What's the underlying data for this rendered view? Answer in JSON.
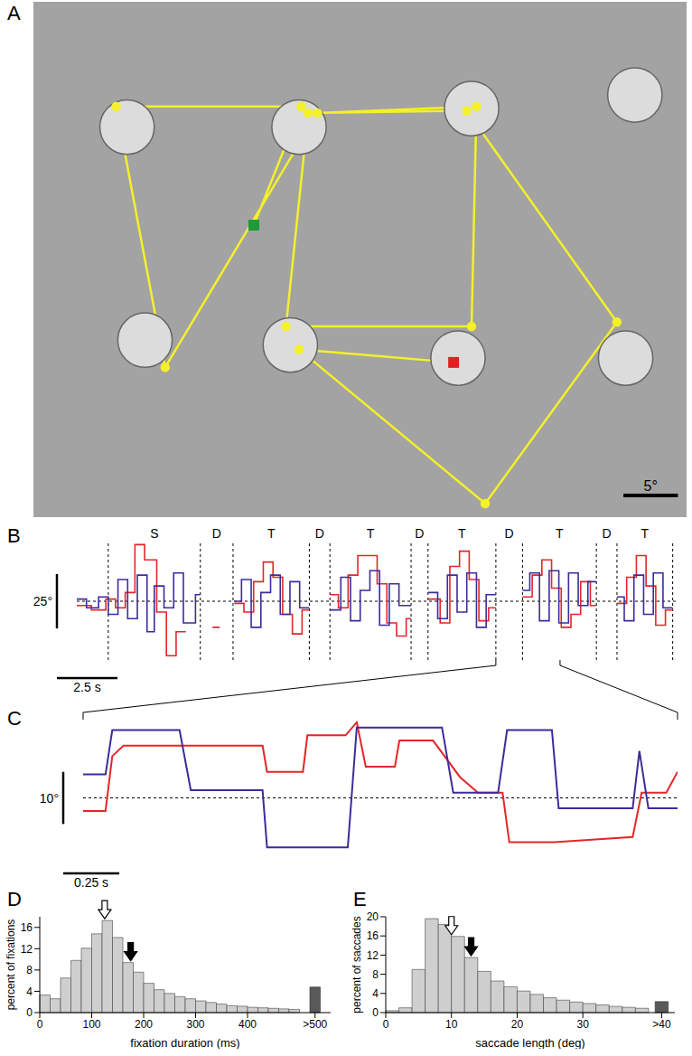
{
  "chart_data": [
    {
      "type": "line",
      "panel_label": "A",
      "xlim": [
        0,
        60
      ],
      "ylim": [
        0,
        47.3
      ],
      "tick_labels": false,
      "patches": {
        "x": [
          8.6,
          24.4,
          40.25,
          55.25,
          10.25,
          23.6,
          39,
          54.4
        ],
        "y": [
          35.8,
          35.8,
          37.5,
          38.75,
          16.25,
          15.8,
          14.6,
          14.6
        ],
        "r": [
          2.5,
          2.5,
          2.5,
          2.5,
          2.5,
          2.5,
          2.5,
          2.5
        ]
      },
      "series": [
        {
          "type": "line",
          "color": "#f4f02a",
          "marker": "circle",
          "x": [
            20.25,
            24.6,
            7.6,
            12.1,
            26.1,
            40.7,
            40.25,
            23.2,
            25.25,
            39.8,
            53.6,
            41.5,
            24.4,
            38.6
          ],
          "values": [
            26.8,
            37.7,
            37.7,
            13.75,
            37.1,
            37.7,
            17.5,
            17.5,
            37.1,
            37.3,
            17.9,
            1.25,
            15.4,
            14.2
          ]
        },
        {
          "type": "scatter",
          "color": "#1f9a3a",
          "marker": "square",
          "x": [
            20.25
          ],
          "values": [
            26.8
          ]
        },
        {
          "type": "scatter",
          "color": "#e02020",
          "marker": "square",
          "x": [
            38.6
          ],
          "values": [
            14.2
          ]
        }
      ],
      "scale_bar": {
        "length": 5,
        "label": "5°"
      }
    },
    {
      "type": "line",
      "panel_label": "B",
      "xlim": [
        0,
        24.8
      ],
      "ylim": [
        -27,
        27
      ],
      "tick_labels": false,
      "baseline": 0,
      "segments": {
        "bounds": [
          1.3,
          5.1,
          6.45,
          9.6,
          10.45,
          13.8,
          14.5,
          17.3,
          18.4,
          21.45,
          22.3,
          24.6
        ],
        "labels": [
          "S",
          "D",
          "T",
          "D",
          "T",
          "D",
          "T",
          "D",
          "T",
          "D",
          "T"
        ]
      },
      "scale_bars": [
        {
          "axis": "y",
          "length": 25,
          "label": "25°"
        },
        {
          "axis": "x",
          "length": 2.5,
          "label": "2.5 s"
        }
      ],
      "zoom": [
        17.3,
        19.95
      ],
      "series": [
        {
          "color": "#e3262a",
          "x": [
            0,
            0.6,
            1.2,
            1.6,
            2.0,
            2.4,
            2.8,
            3.3,
            3.7,
            4.1,
            4.5,
            4.8,
            5.6,
            5.9,
            6.2,
            6.5,
            6.9,
            7.3,
            7.7,
            8.1,
            8.5,
            8.9,
            9.3,
            9.6,
            10.0,
            10.45,
            10.8,
            11.2,
            11.6,
            12.4,
            12.8,
            13.2,
            13.6,
            13.8,
            14.1,
            14.5,
            15.0,
            15.4,
            15.8,
            16.2,
            16.6,
            17.0,
            17.3,
            17.8,
            18.4,
            18.8,
            19.2,
            19.6,
            20.0,
            20.4,
            20.8,
            21.2,
            21.45,
            21.9,
            22.3,
            22.7,
            23.1,
            23.5,
            23.9,
            24.3,
            24.6
          ],
          "values": [
            -2,
            -4,
            1,
            -3,
            4,
            26,
            19,
            -5,
            -25,
            -14,
            -14,
            null,
            -12,
            -12,
            null,
            -1,
            -5,
            9,
            18,
            11,
            -6,
            -15,
            -4,
            -4,
            null,
            3,
            -3,
            12,
            21,
            8,
            -10,
            -16,
            -8,
            -8,
            null,
            1,
            -10,
            16,
            23,
            10,
            -9,
            -3,
            -3,
            null,
            2,
            12,
            19,
            6,
            -12,
            -6,
            9,
            -2,
            -2,
            null,
            -1,
            11,
            21,
            7,
            -11,
            -4,
            -4
          ]
        },
        {
          "color": "#3a2d9c",
          "x": [
            0,
            0.4,
            0.9,
            1.3,
            1.7,
            2.1,
            2.5,
            2.9,
            3.2,
            3.6,
            4.0,
            4.4,
            4.9,
            5.1,
            5.6,
            6.5,
            6.8,
            7.2,
            7.6,
            8.0,
            8.4,
            8.8,
            9.2,
            9.6,
            10.0,
            10.45,
            10.9,
            11.3,
            11.7,
            12.1,
            12.5,
            12.9,
            13.3,
            13.8,
            14.1,
            14.5,
            14.9,
            15.3,
            15.7,
            16.1,
            16.5,
            16.9,
            17.3,
            17.8,
            18.4,
            18.7,
            19.1,
            19.5,
            19.9,
            20.3,
            20.7,
            21.1,
            21.45,
            21.9,
            22.3,
            22.6,
            23.0,
            23.4,
            23.8,
            24.2,
            24.6
          ],
          "values": [
            1,
            -3,
            2,
            -6,
            10,
            -8,
            12,
            -14,
            7,
            -3,
            13,
            -10,
            3,
            3,
            null,
            0,
            10,
            -12,
            4,
            12,
            -6,
            9,
            -3,
            -3,
            null,
            -4,
            11,
            -9,
            5,
            14,
            -11,
            8,
            -2,
            -2,
            null,
            4,
            -8,
            12,
            -5,
            13,
            -12,
            3,
            3,
            null,
            5,
            13,
            -9,
            14,
            -10,
            13,
            -2,
            9,
            9,
            null,
            2,
            -9,
            12,
            -6,
            13,
            -3,
            -3
          ]
        }
      ]
    },
    {
      "type": "line",
      "panel_label": "C",
      "xlim": [
        0,
        2.65
      ],
      "ylim": [
        -11,
        15
      ],
      "tick_labels": false,
      "baseline": 0,
      "scale_bars": [
        {
          "axis": "y",
          "length": 10,
          "label": "10°"
        },
        {
          "axis": "x",
          "length": 0.25,
          "label": "0.25 s"
        }
      ],
      "series": [
        {
          "color": "#e3262a",
          "x": [
            0,
            0.1,
            0.13,
            0.18,
            0.8,
            0.82,
            0.98,
            1.0,
            1.17,
            1.22,
            1.26,
            1.39,
            1.41,
            1.56,
            1.68,
            1.76,
            1.87,
            1.9,
            2.1,
            2.45,
            2.49,
            2.6,
            2.65
          ],
          "values": [
            -2.5,
            -2.5,
            8,
            10,
            10,
            5,
            5,
            12,
            12,
            14.5,
            6,
            6,
            11,
            11,
            4,
            1,
            1,
            -8.5,
            -8.5,
            -7.5,
            1,
            1,
            5
          ]
        },
        {
          "color": "#3a2d9c",
          "x": [
            0,
            0.1,
            0.13,
            0.43,
            0.48,
            0.8,
            0.82,
            1.18,
            1.22,
            1.6,
            1.65,
            1.85,
            1.89,
            2.09,
            2.12,
            2.45,
            2.48,
            2.52,
            2.65
          ],
          "values": [
            4.5,
            4.5,
            13,
            13,
            1.5,
            1.5,
            -9.5,
            -9.5,
            13.5,
            13.5,
            1,
            1,
            13,
            13,
            -2,
            -2,
            9,
            -2,
            -2
          ]
        }
      ]
    },
    {
      "type": "histogram",
      "panel_label": "D",
      "x_label": "fixation duration (ms)",
      "y_label": "percent of fixations",
      "bins": [
        0,
        20,
        40,
        60,
        80,
        100,
        120,
        140,
        160,
        180,
        200,
        220,
        240,
        260,
        280,
        300,
        320,
        340,
        360,
        380,
        400,
        420,
        440,
        460,
        480,
        500
      ],
      "counts": [
        3.3,
        2.6,
        6.5,
        9.8,
        12.1,
        14.8,
        17.3,
        14.1,
        9.4,
        7.6,
        5.5,
        4.3,
        3.6,
        3.0,
        2.6,
        2.2,
        1.9,
        1.6,
        1.3,
        1.2,
        1.0,
        0.9,
        0.8,
        0.7,
        0.6
      ],
      "color": "#cfcfcf",
      "xlim": [
        0,
        560
      ],
      "xticks": [
        0,
        100,
        200,
        300,
        400,
        {
          "value": 530,
          "label": ">500"
        }
      ],
      "ylim": [
        0,
        18
      ],
      "yticks": [
        0,
        4,
        8,
        12,
        16
      ],
      "overflow": {
        "bins": [
          520,
          540
        ],
        "count": 4.8,
        "color": "#595959"
      },
      "arrows": [
        {
          "value": 125,
          "marker": "open"
        },
        {
          "value": 175,
          "marker": "filled"
        }
      ]
    },
    {
      "type": "histogram",
      "panel_label": "E",
      "x_label": "saccade length (deg)",
      "y_label": "percent of saccades",
      "bins": [
        0,
        2,
        4,
        6,
        8,
        10,
        12,
        14,
        16,
        18,
        20,
        22,
        24,
        26,
        28,
        30,
        32,
        34,
        36,
        38,
        40
      ],
      "counts": [
        0.4,
        1.0,
        9.0,
        19.6,
        18.4,
        15.9,
        11.5,
        8.6,
        6.6,
        5.4,
        4.5,
        3.8,
        3.1,
        2.6,
        2.2,
        1.9,
        1.6,
        1.3,
        1.1,
        0.9
      ],
      "color": "#cfcfcf",
      "xlim": [
        0,
        44
      ],
      "xticks": [
        0,
        10,
        20,
        30,
        {
          "value": 42,
          "label": ">40"
        }
      ],
      "ylim": [
        0,
        20
      ],
      "yticks": [
        0,
        4,
        8,
        12,
        16,
        20
      ],
      "overflow": {
        "bins": [
          41,
          43
        ],
        "count": 2.3,
        "color": "#595959"
      },
      "arrows": [
        {
          "value": 10,
          "marker": "open"
        },
        {
          "value": 13,
          "marker": "filled"
        }
      ]
    }
  ]
}
